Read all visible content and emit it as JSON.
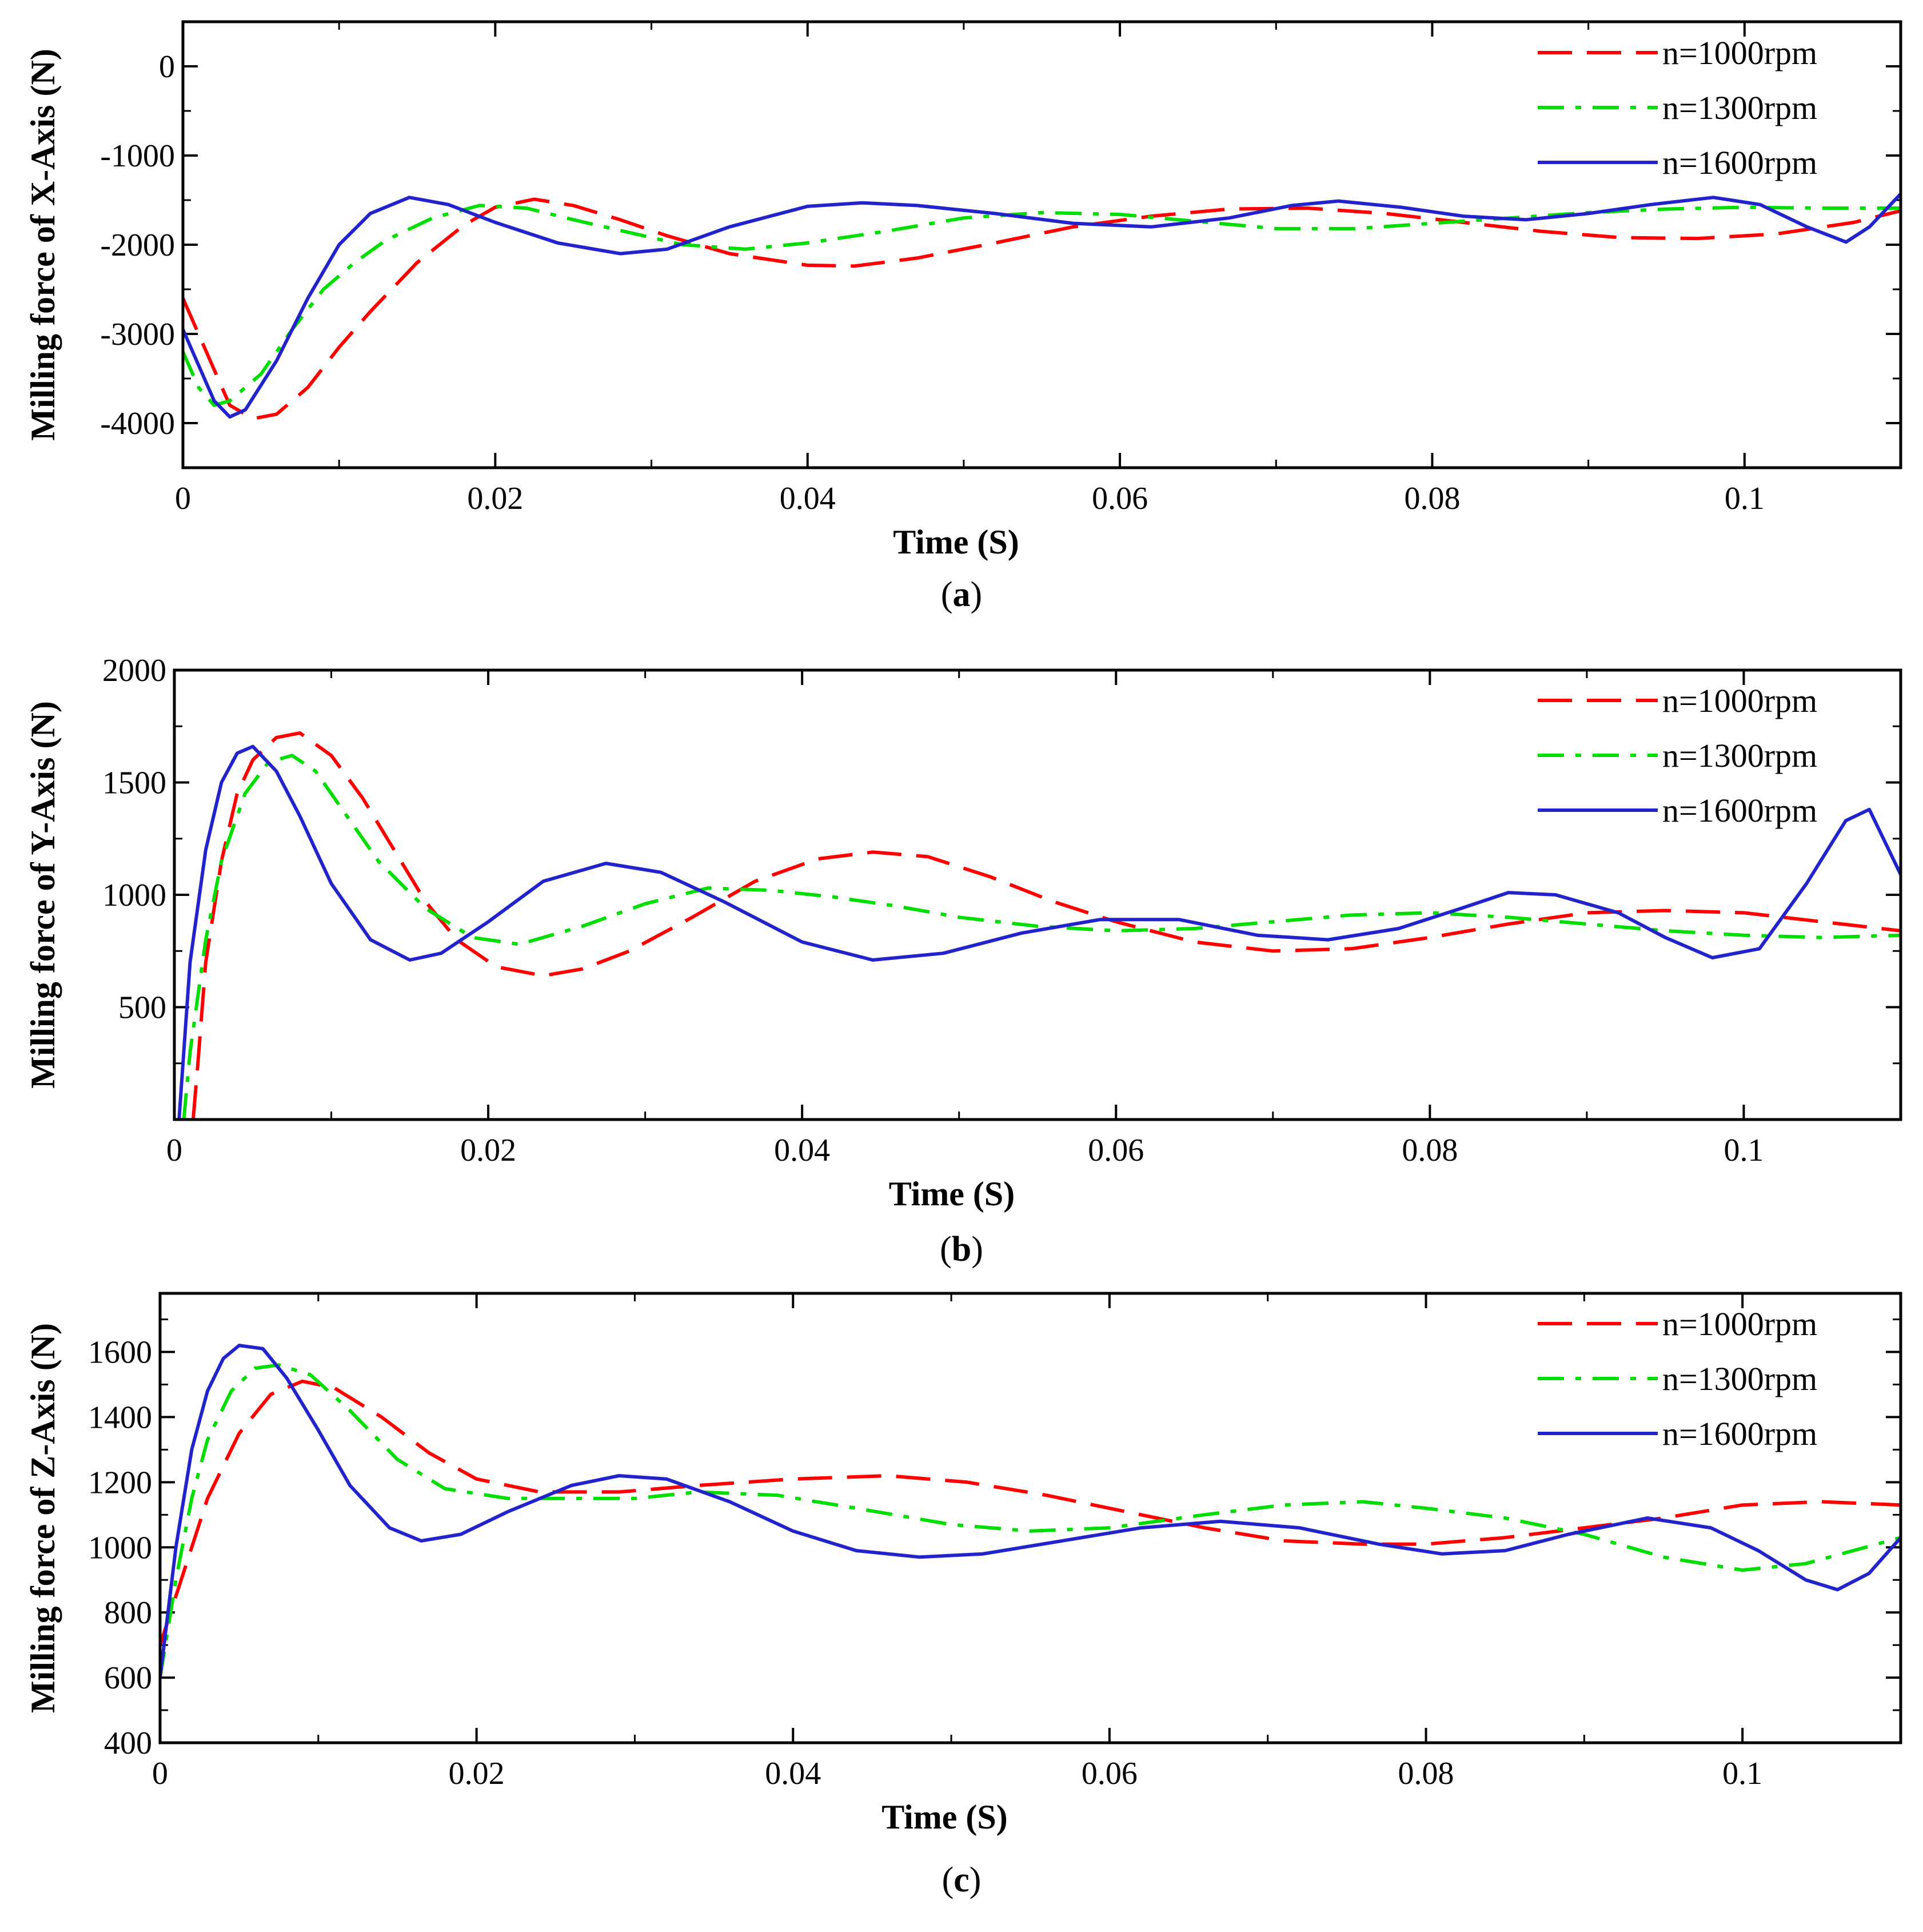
{
  "colors": {
    "s1000": "#ff0000",
    "s1300": "#00dd00",
    "s1600": "#2323cc"
  },
  "legend": [
    "n=1000rpm",
    "n=1300rpm",
    "n=1600rpm"
  ],
  "chart_data": [
    {
      "type": "line",
      "caption": "a",
      "xlabel": "Time (S)",
      "ylabel": "Milling force of X-Axis (N)",
      "xlim": [
        0,
        0.11
      ],
      "ylim": [
        -4500,
        500
      ],
      "xticks": [
        "0",
        "0.02",
        "0.04",
        "0.06",
        "0.08",
        "0.1"
      ],
      "yticks": [
        "0",
        "-1000",
        "-2000",
        "-3000",
        "-4000"
      ],
      "ytick_values": [
        0,
        -1000,
        -2000,
        -3000,
        -4000
      ],
      "series": [
        {
          "name": "n=1000rpm",
          "x": [
            0,
            0.001,
            0.002,
            0.003,
            0.0045,
            0.006,
            0.008,
            0.01,
            0.012,
            0.015,
            0.018,
            0.02,
            0.0225,
            0.025,
            0.028,
            0.031,
            0.035,
            0.04,
            0.043,
            0.047,
            0.052,
            0.057,
            0.062,
            0.067,
            0.072,
            0.077,
            0.082,
            0.087,
            0.092,
            0.097,
            0.102,
            0.107,
            0.11
          ],
          "values": [
            -2600,
            -3000,
            -3400,
            -3800,
            -3950,
            -3900,
            -3600,
            -3150,
            -2750,
            -2200,
            -1780,
            -1580,
            -1490,
            -1560,
            -1720,
            -1900,
            -2100,
            -2230,
            -2240,
            -2150,
            -1980,
            -1800,
            -1680,
            -1600,
            -1590,
            -1650,
            -1750,
            -1850,
            -1920,
            -1930,
            -1880,
            -1750,
            -1620
          ]
        },
        {
          "name": "n=1300rpm",
          "x": [
            0,
            0.001,
            0.002,
            0.003,
            0.005,
            0.007,
            0.009,
            0.011,
            0.013,
            0.016,
            0.019,
            0.022,
            0.025,
            0.028,
            0.032,
            0.036,
            0.04,
            0.045,
            0.05,
            0.055,
            0.06,
            0.065,
            0.07,
            0.075,
            0.08,
            0.085,
            0.09,
            0.095,
            0.1,
            0.105,
            0.11
          ],
          "values": [
            -3200,
            -3600,
            -3800,
            -3750,
            -3450,
            -2950,
            -2500,
            -2200,
            -1950,
            -1700,
            -1560,
            -1590,
            -1720,
            -1840,
            -2000,
            -2050,
            -1980,
            -1850,
            -1700,
            -1640,
            -1660,
            -1740,
            -1820,
            -1820,
            -1760,
            -1700,
            -1640,
            -1600,
            -1580,
            -1590,
            -1590
          ]
        },
        {
          "name": "n=1600rpm",
          "x": [
            0,
            0.001,
            0.002,
            0.003,
            0.004,
            0.006,
            0.008,
            0.01,
            0.012,
            0.0145,
            0.017,
            0.02,
            0.024,
            0.028,
            0.031,
            0.035,
            0.04,
            0.0435,
            0.047,
            0.052,
            0.057,
            0.062,
            0.067,
            0.071,
            0.074,
            0.078,
            0.082,
            0.086,
            0.09,
            0.094,
            0.098,
            0.101,
            0.104,
            0.1065,
            0.108,
            0.11
          ],
          "values": [
            -2950,
            -3350,
            -3750,
            -3930,
            -3850,
            -3300,
            -2600,
            -2000,
            -1650,
            -1470,
            -1550,
            -1750,
            -1980,
            -2100,
            -2050,
            -1800,
            -1570,
            -1530,
            -1560,
            -1650,
            -1760,
            -1800,
            -1700,
            -1560,
            -1510,
            -1580,
            -1680,
            -1720,
            -1650,
            -1550,
            -1470,
            -1550,
            -1800,
            -1970,
            -1800,
            -1430
          ]
        }
      ]
    },
    {
      "type": "line",
      "caption": "b",
      "xlabel": "Time (S)",
      "ylabel": "Milling force of Y-Axis (N)",
      "xlim": [
        0,
        0.11
      ],
      "ylim": [
        0,
        2000
      ],
      "xticks": [
        "0",
        "0.02",
        "0.04",
        "0.06",
        "0.08",
        "0.1"
      ],
      "yticks": [
        "2000",
        "1500",
        "1000",
        "500"
      ],
      "ytick_values": [
        2000,
        1500,
        1000,
        500
      ],
      "series": [
        {
          "name": "n=1000rpm",
          "x": [
            0.0012,
            0.0015,
            0.002,
            0.003,
            0.004,
            0.005,
            0.0065,
            0.008,
            0.01,
            0.012,
            0.014,
            0.016,
            0.018,
            0.0205,
            0.0235,
            0.026,
            0.029,
            0.033,
            0.037,
            0.041,
            0.0445,
            0.048,
            0.052,
            0.056,
            0.06,
            0.065,
            0.07,
            0.075,
            0.08,
            0.085,
            0.09,
            0.095,
            0.1,
            0.105,
            0.11
          ],
          "values": [
            0,
            250,
            700,
            1150,
            1450,
            1600,
            1700,
            1720,
            1620,
            1430,
            1200,
            970,
            800,
            680,
            640,
            670,
            750,
            900,
            1060,
            1160,
            1190,
            1170,
            1080,
            970,
            880,
            790,
            750,
            760,
            810,
            870,
            920,
            930,
            920,
            880,
            840
          ]
        },
        {
          "name": "n=1300rpm",
          "x": [
            0.0006,
            0.001,
            0.002,
            0.003,
            0.0045,
            0.006,
            0.0075,
            0.009,
            0.011,
            0.013,
            0.016,
            0.019,
            0.022,
            0.026,
            0.03,
            0.034,
            0.038,
            0.042,
            0.046,
            0.05,
            0.055,
            0.06,
            0.065,
            0.07,
            0.075,
            0.08,
            0.085,
            0.09,
            0.095,
            0.1,
            0.105,
            0.11
          ],
          "values": [
            0,
            300,
            800,
            1150,
            1450,
            1590,
            1620,
            1550,
            1350,
            1150,
            940,
            810,
            780,
            860,
            960,
            1030,
            1020,
            990,
            950,
            900,
            860,
            840,
            850,
            880,
            910,
            920,
            900,
            870,
            840,
            820,
            810,
            820
          ]
        },
        {
          "name": "n=1600rpm",
          "x": [
            0.0003,
            0.001,
            0.002,
            0.003,
            0.004,
            0.005,
            0.0065,
            0.008,
            0.01,
            0.0125,
            0.015,
            0.017,
            0.02,
            0.0235,
            0.0275,
            0.031,
            0.035,
            0.04,
            0.0445,
            0.049,
            0.054,
            0.059,
            0.064,
            0.069,
            0.0735,
            0.078,
            0.082,
            0.085,
            0.088,
            0.092,
            0.095,
            0.098,
            0.101,
            0.104,
            0.1065,
            0.108,
            0.11
          ],
          "values": [
            0,
            700,
            1200,
            1500,
            1630,
            1660,
            1550,
            1350,
            1050,
            800,
            710,
            740,
            880,
            1060,
            1140,
            1100,
            970,
            790,
            710,
            740,
            830,
            890,
            890,
            820,
            800,
            850,
            940,
            1010,
            1000,
            920,
            810,
            720,
            760,
            1050,
            1330,
            1380,
            1090
          ]
        }
      ]
    },
    {
      "type": "line",
      "caption": "c",
      "xlabel": "Time (S)",
      "ylabel": "Milling force of Z-Axis (N)",
      "xlim": [
        0,
        0.11
      ],
      "ylim": [
        400,
        1780
      ],
      "xticks": [
        "0",
        "0.02",
        "0.04",
        "0.06",
        "0.08",
        "0.1"
      ],
      "yticks": [
        "1600",
        "1400",
        "1200",
        "1000",
        "800",
        "600",
        "400"
      ],
      "ytick_values": [
        1600,
        1400,
        1200,
        1000,
        800,
        600,
        400
      ],
      "series": [
        {
          "name": "n=1000rpm",
          "x": [
            0,
            0.001,
            0.002,
            0.003,
            0.005,
            0.007,
            0.009,
            0.011,
            0.014,
            0.017,
            0.02,
            0.024,
            0.029,
            0.034,
            0.04,
            0.046,
            0.051,
            0.056,
            0.061,
            0.066,
            0.071,
            0.076,
            0.08,
            0.085,
            0.09,
            0.095,
            0.1,
            0.105,
            0.11
          ],
          "values": [
            700,
            850,
            1000,
            1150,
            1350,
            1470,
            1510,
            1490,
            1400,
            1290,
            1210,
            1170,
            1170,
            1190,
            1210,
            1220,
            1200,
            1160,
            1110,
            1060,
            1020,
            1010,
            1010,
            1030,
            1060,
            1090,
            1130,
            1140,
            1130
          ]
        },
        {
          "name": "n=1300rpm",
          "x": [
            0,
            0.001,
            0.002,
            0.003,
            0.0045,
            0.006,
            0.0075,
            0.0095,
            0.012,
            0.015,
            0.018,
            0.022,
            0.026,
            0.03,
            0.034,
            0.039,
            0.044,
            0.05,
            0.055,
            0.06,
            0.066,
            0.071,
            0.076,
            0.08,
            0.085,
            0.09,
            0.095,
            0.1,
            0.104,
            0.107,
            0.11
          ],
          "values": [
            600,
            900,
            1150,
            1330,
            1480,
            1550,
            1560,
            1530,
            1420,
            1270,
            1180,
            1150,
            1150,
            1150,
            1170,
            1160,
            1120,
            1070,
            1050,
            1060,
            1100,
            1130,
            1140,
            1120,
            1090,
            1040,
            970,
            930,
            950,
            990,
            1030
          ]
        },
        {
          "name": "n=1600rpm",
          "x": [
            0,
            0.001,
            0.002,
            0.003,
            0.004,
            0.005,
            0.0065,
            0.008,
            0.01,
            0.012,
            0.0145,
            0.0165,
            0.019,
            0.022,
            0.026,
            0.029,
            0.032,
            0.036,
            0.04,
            0.044,
            0.048,
            0.052,
            0.057,
            0.062,
            0.067,
            0.072,
            0.077,
            0.081,
            0.085,
            0.089,
            0.094,
            0.098,
            0.101,
            0.104,
            0.106,
            0.108,
            0.11
          ],
          "values": [
            600,
            1000,
            1300,
            1480,
            1580,
            1620,
            1610,
            1520,
            1360,
            1190,
            1060,
            1020,
            1040,
            1110,
            1190,
            1220,
            1210,
            1140,
            1050,
            990,
            970,
            980,
            1020,
            1060,
            1080,
            1060,
            1010,
            980,
            990,
            1040,
            1090,
            1060,
            990,
            900,
            870,
            920,
            1030
          ]
        }
      ]
    }
  ]
}
